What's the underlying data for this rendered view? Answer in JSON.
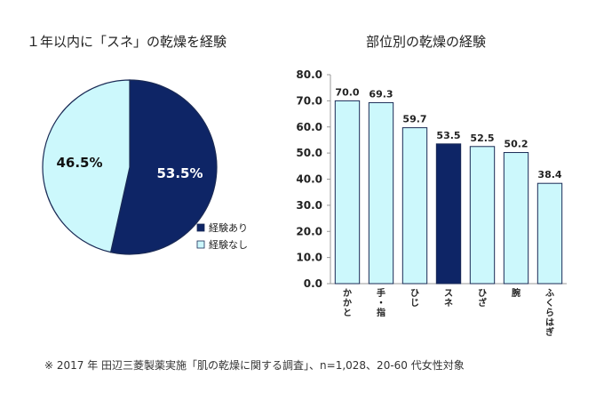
{
  "colors": {
    "dark": "#0e2566",
    "light": "#ccf8fc",
    "stroke": "#1a2a55",
    "axis": "#999999",
    "grid": "#dddddd"
  },
  "pie": {
    "title": "１年以内に「スネ」の乾燥を経験",
    "legend": [
      {
        "label": "経験あり",
        "color": "#0e2566"
      },
      {
        "label": "経験なし",
        "color": "#ccf8fc"
      }
    ]
  },
  "bar": {
    "title": "部位別の乾燥の経験"
  },
  "footnote": "※ 2017 年 田辺三菱製薬実施「肌の乾燥に関する調査」、n=1,028、20-60 代女性対象",
  "chart_data": [
    {
      "type": "pie",
      "title": "１年以内に「スネ」の乾燥を経験",
      "slices": [
        {
          "name": "経験あり",
          "value": 53.5,
          "label": "53.5%",
          "color": "#0e2566"
        },
        {
          "name": "経験なし",
          "value": 46.5,
          "label": "46.5%",
          "color": "#ccf8fc"
        }
      ],
      "legend_position": "bottom-right"
    },
    {
      "type": "bar",
      "title": "部位別の乾燥の経験",
      "categories": [
        "かかと",
        "手・指",
        "ひじ",
        "スネ",
        "ひざ",
        "腕",
        "ふくらはぎ"
      ],
      "values": [
        70.0,
        69.3,
        59.7,
        53.5,
        52.5,
        50.2,
        38.4
      ],
      "value_labels": [
        "70.0",
        "69.3",
        "59.7",
        "53.5",
        "52.5",
        "50.2",
        "38.4"
      ],
      "highlight": "スネ",
      "ylim": [
        0,
        80
      ],
      "yticks": [
        "0.0",
        "10.0",
        "20.0",
        "30.0",
        "40.0",
        "50.0",
        "60.0",
        "70.0",
        "80.0"
      ],
      "grid": false
    }
  ]
}
